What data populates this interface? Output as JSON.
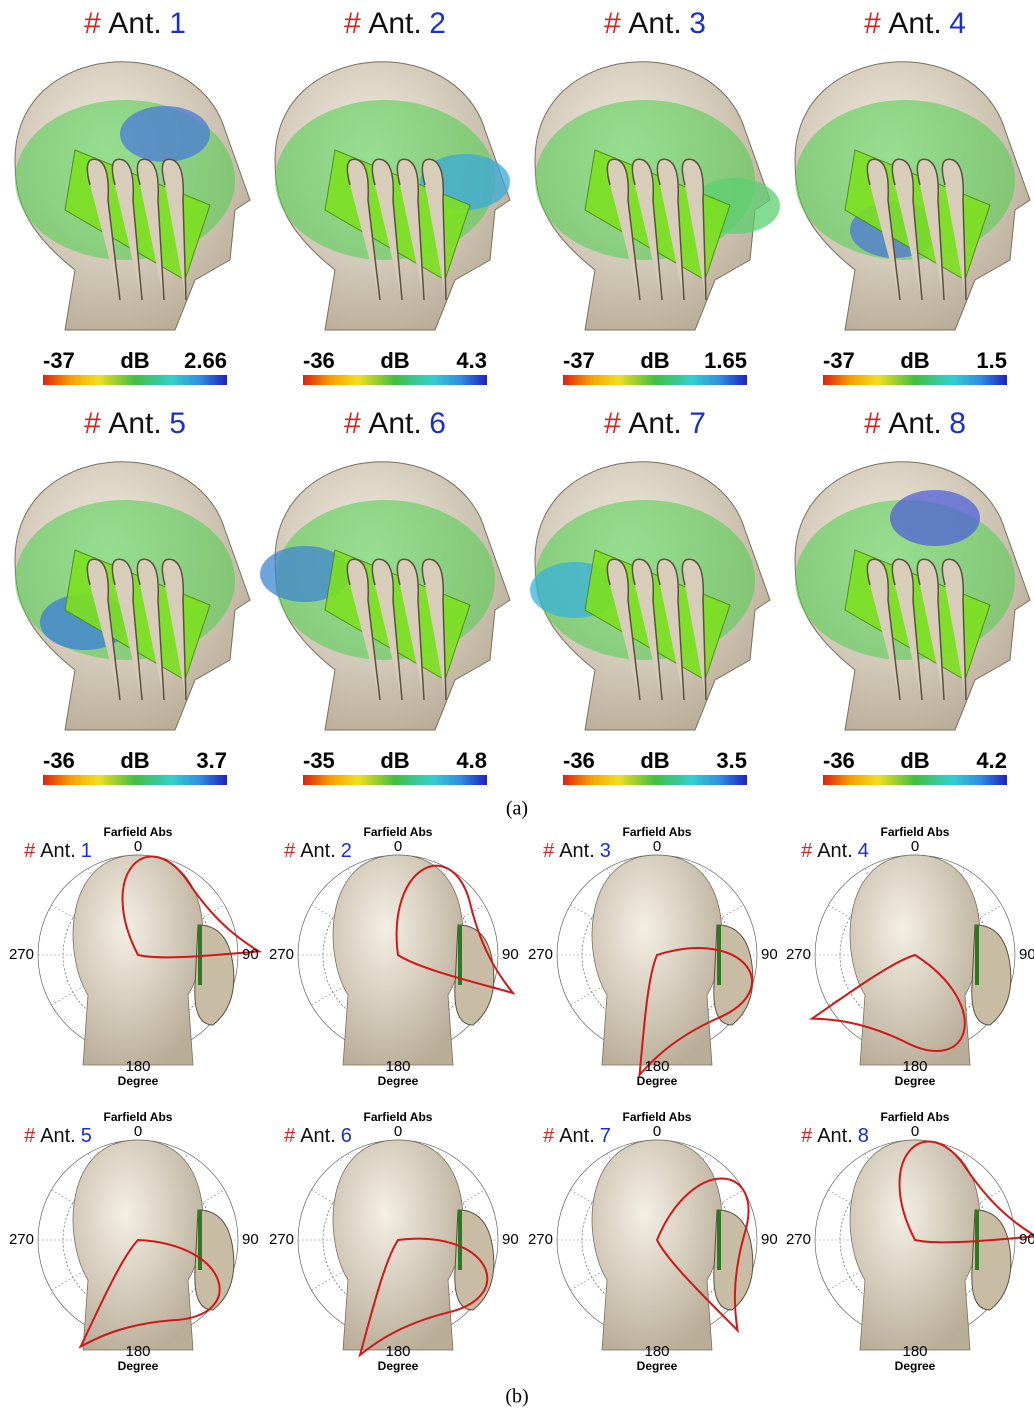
{
  "panel_a": {
    "label": "(a)",
    "items": [
      {
        "hash": "#",
        "ant": "Ant.",
        "number": "1",
        "min": "-37",
        "unit": "dB",
        "max": "2.66"
      },
      {
        "hash": "#",
        "ant": "Ant.",
        "number": "2",
        "min": "-36",
        "unit": "dB",
        "max": "4.3"
      },
      {
        "hash": "#",
        "ant": "Ant.",
        "number": "3",
        "min": "-37",
        "unit": "dB",
        "max": "1.65"
      },
      {
        "hash": "#",
        "ant": "Ant.",
        "number": "4",
        "min": "-37",
        "unit": "dB",
        "max": "1.5"
      },
      {
        "hash": "#",
        "ant": "Ant.",
        "number": "5",
        "min": "-36",
        "unit": "dB",
        "max": "3.7"
      },
      {
        "hash": "#",
        "ant": "Ant.",
        "number": "6",
        "min": "-35",
        "unit": "dB",
        "max": "4.8"
      },
      {
        "hash": "#",
        "ant": "Ant.",
        "number": "7",
        "min": "-36",
        "unit": "dB",
        "max": "3.5"
      },
      {
        "hash": "#",
        "ant": "Ant.",
        "number": "8",
        "min": "-36",
        "unit": "dB",
        "max": "4.2"
      }
    ]
  },
  "panel_b": {
    "label": "(b)",
    "items": [
      {
        "hash": "#",
        "ant": "Ant.",
        "number": "1",
        "title": "Farfield Abs",
        "angles": [
          "0",
          "90",
          "180",
          "270"
        ],
        "axis": "Degree"
      },
      {
        "hash": "#",
        "ant": "Ant.",
        "number": "2",
        "title": "Farfield Abs",
        "angles": [
          "0",
          "90",
          "180",
          "270"
        ],
        "axis": "Degree"
      },
      {
        "hash": "#",
        "ant": "Ant.",
        "number": "3",
        "title": "Farfield Abs",
        "angles": [
          "0",
          "90",
          "180",
          "270"
        ],
        "axis": "Degree"
      },
      {
        "hash": "#",
        "ant": "Ant.",
        "number": "4",
        "title": "Farfield Abs",
        "angles": [
          "0",
          "90",
          "180",
          "270"
        ],
        "axis": "Degree"
      },
      {
        "hash": "#",
        "ant": "Ant.",
        "number": "5",
        "title": "Farfield Abs",
        "angles": [
          "0",
          "90",
          "180",
          "270"
        ],
        "axis": "Degree"
      },
      {
        "hash": "#",
        "ant": "Ant.",
        "number": "6",
        "title": "Farfield Abs",
        "angles": [
          "0",
          "90",
          "180",
          "270"
        ],
        "axis": "Degree"
      },
      {
        "hash": "#",
        "ant": "Ant.",
        "number": "7",
        "title": "Farfield Abs",
        "angles": [
          "0",
          "90",
          "180",
          "270"
        ],
        "axis": "Degree"
      },
      {
        "hash": "#",
        "ant": "Ant.",
        "number": "8",
        "title": "Farfield Abs",
        "angles": [
          "0",
          "90",
          "180",
          "270"
        ],
        "axis": "Degree"
      }
    ]
  }
}
